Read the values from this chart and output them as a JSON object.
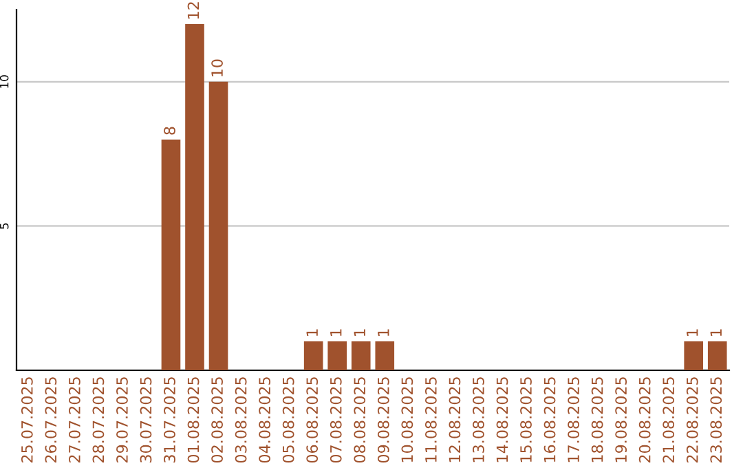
{
  "chart_data": {
    "type": "bar",
    "categories": [
      "25.07.2025",
      "26.07.2025",
      "27.07.2025",
      "28.07.2025",
      "29.07.2025",
      "30.07.2025",
      "31.07.2025",
      "01.08.2025",
      "02.08.2025",
      "03.08.2025",
      "04.08.2025",
      "05.08.2025",
      "06.08.2025",
      "07.08.2025",
      "08.08.2025",
      "09.08.2025",
      "10.08.2025",
      "11.08.2025",
      "12.08.2025",
      "13.08.2025",
      "14.08.2025",
      "15.08.2025",
      "16.08.2025",
      "17.08.2025",
      "18.08.2025",
      "19.08.2025",
      "20.08.2025",
      "21.08.2025",
      "22.08.2025",
      "23.08.2025"
    ],
    "values": [
      null,
      null,
      null,
      null,
      null,
      null,
      8,
      12,
      10,
      null,
      null,
      null,
      1,
      1,
      1,
      1,
      null,
      null,
      null,
      null,
      null,
      null,
      null,
      null,
      null,
      null,
      null,
      null,
      1,
      1
    ],
    "value_labels": [
      null,
      null,
      null,
      null,
      null,
      null,
      "8",
      "12",
      "10",
      null,
      null,
      null,
      "1",
      "1",
      "1",
      "1",
      null,
      null,
      null,
      null,
      null,
      null,
      null,
      null,
      null,
      null,
      null,
      null,
      "1",
      "1"
    ],
    "color": "#a0522d",
    "ylim": [
      0,
      12.5
    ],
    "yticks": [
      5,
      10
    ],
    "grid": "y"
  }
}
